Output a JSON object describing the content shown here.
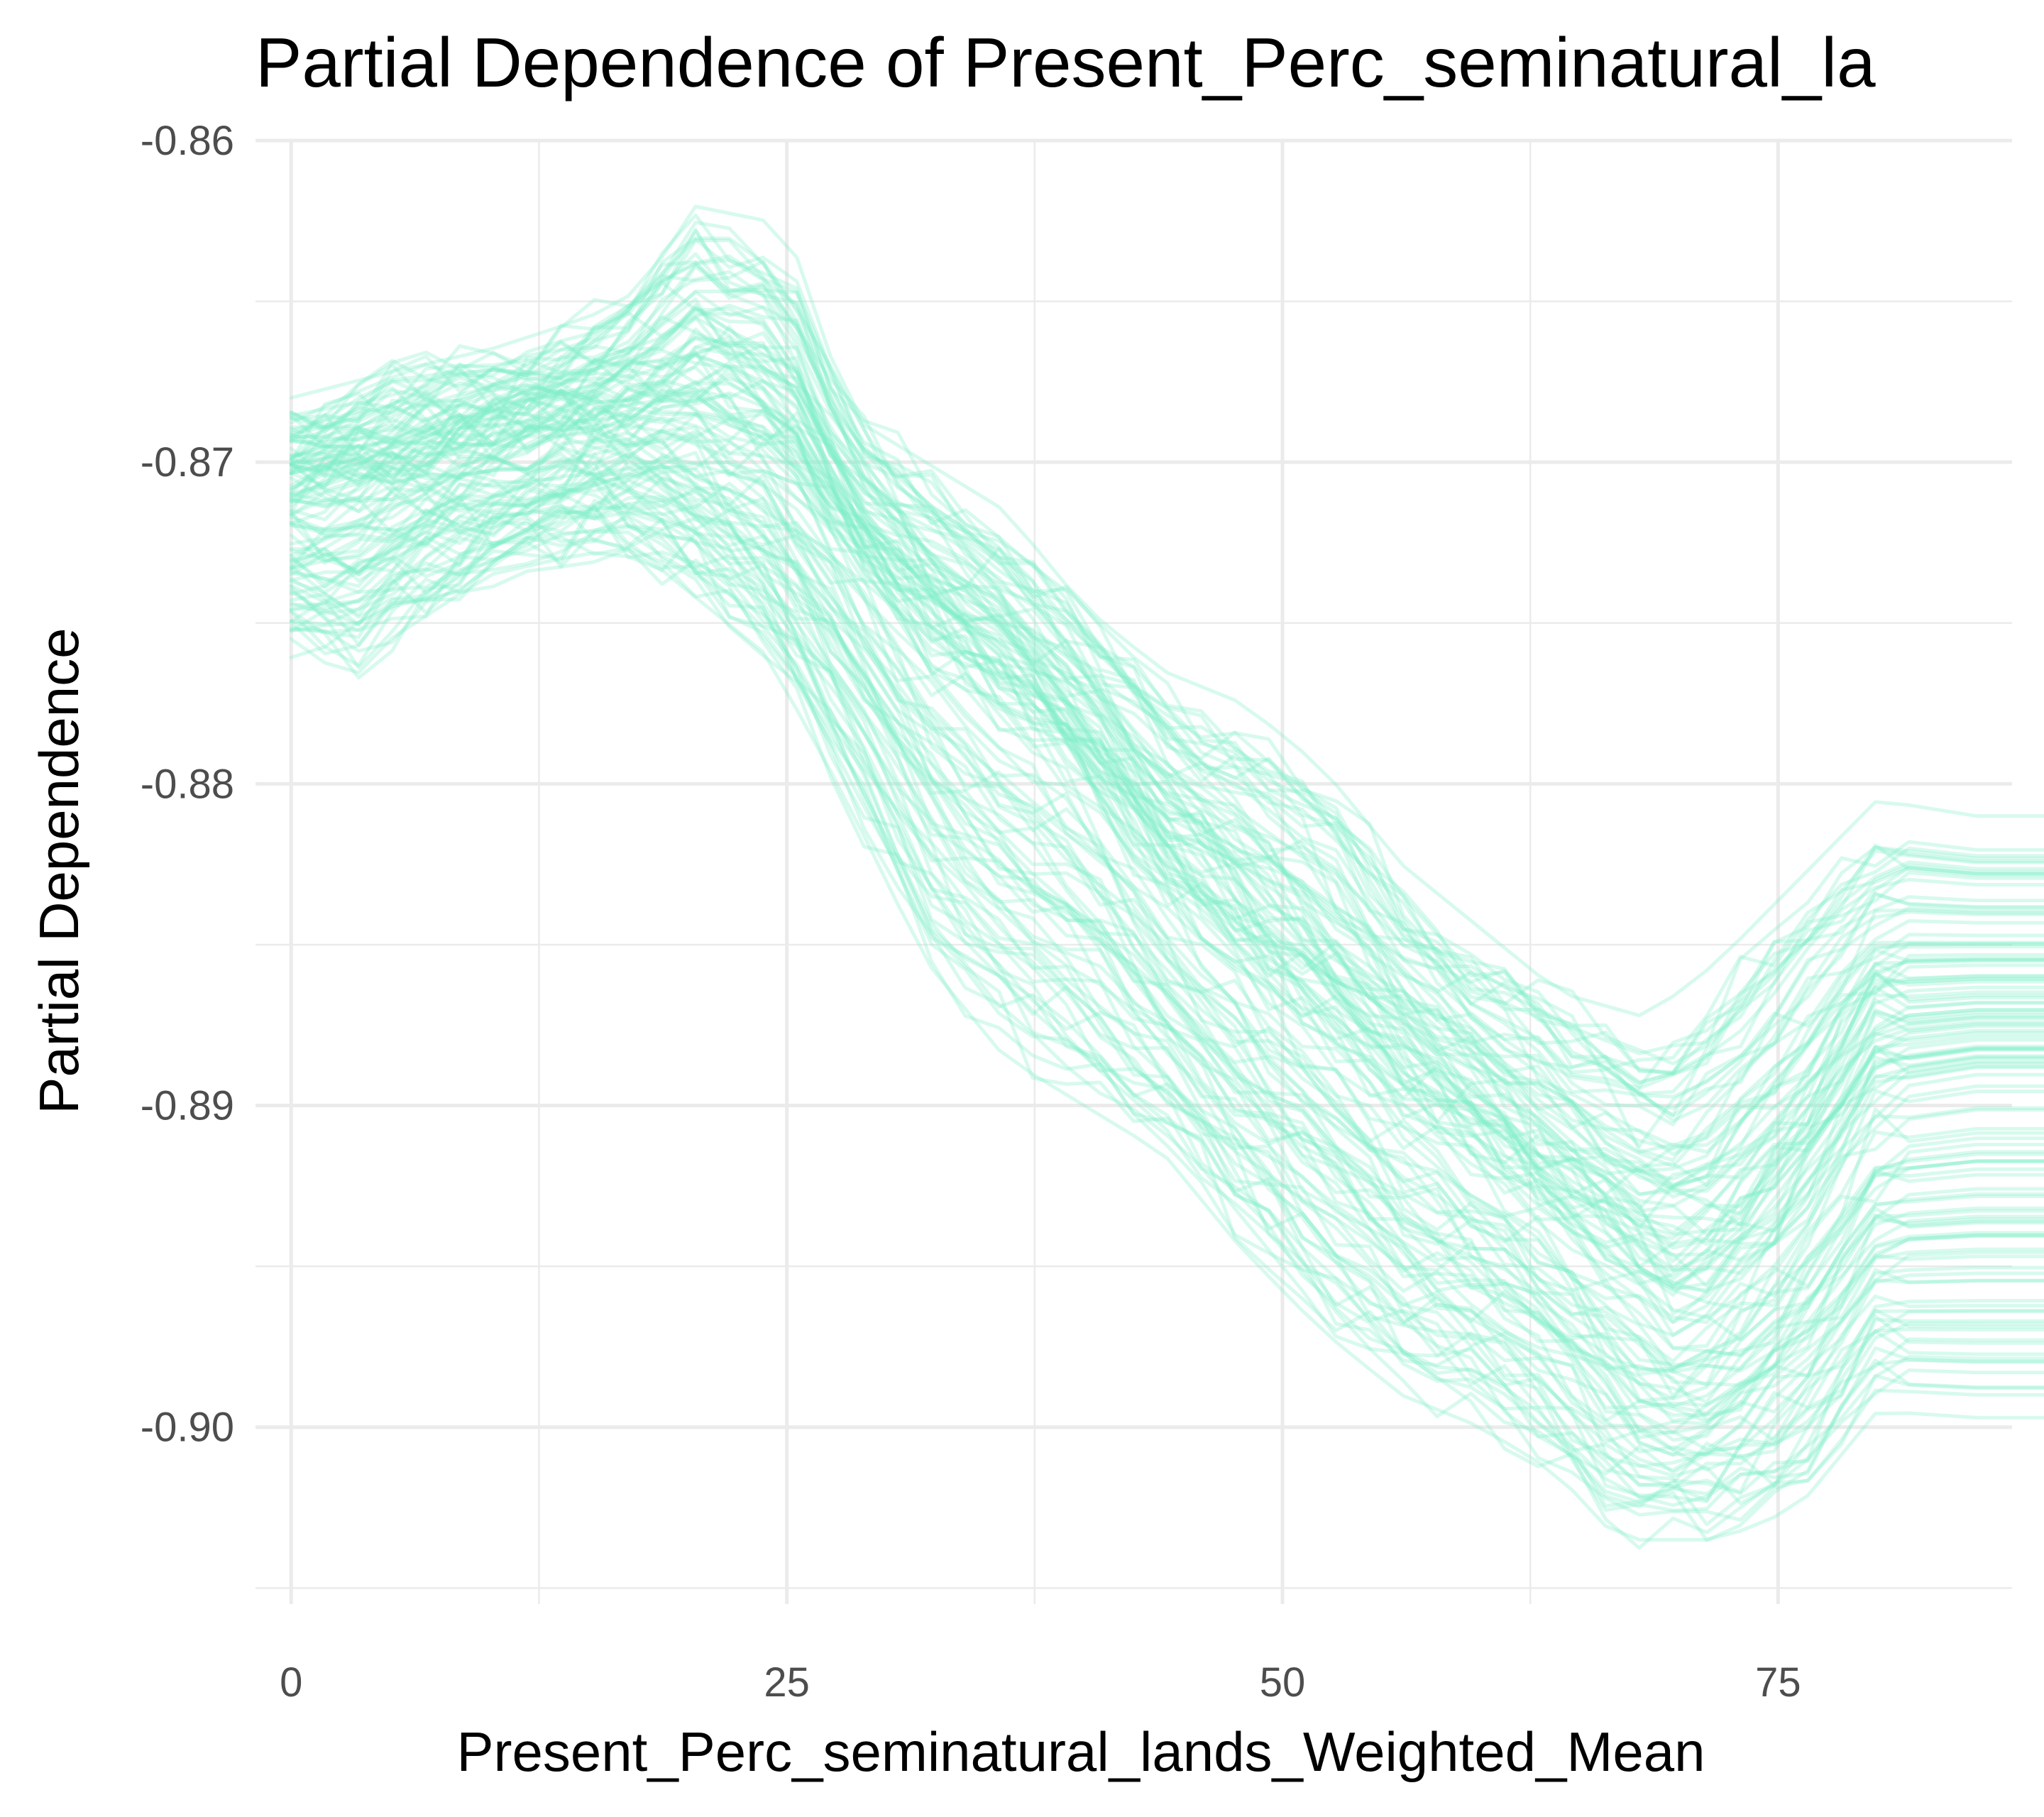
{
  "chart_data": {
    "type": "line",
    "title": "Partial Dependence of Present_Perc_seminatural_la",
    "xlabel": "Present_Perc_seminatural_lands_Weighted_Mean",
    "ylabel": "Partial Dependence",
    "xlim": [
      -1.8,
      86.8
    ],
    "ylim": [
      -0.9055,
      -0.86
    ],
    "x_ticks": [
      0,
      25,
      50,
      75
    ],
    "x_tick_labels": [
      "0",
      "25",
      "50",
      "75"
    ],
    "x_minor_ticks": [
      12.5,
      37.5,
      62.5,
      87.5
    ],
    "y_ticks": [
      -0.86,
      -0.87,
      -0.88,
      -0.89,
      -0.9
    ],
    "y_tick_labels": [
      "-0.86",
      "-0.87",
      "-0.88",
      "-0.89",
      "-0.90"
    ],
    "y_minor_ticks": [
      -0.865,
      -0.875,
      -0.885,
      -0.895,
      -0.905
    ],
    "grid": true,
    "legend": "none",
    "line_color": "#7ff0c6",
    "line_opacity": 0.3,
    "series_count": 120,
    "mean_curve": {
      "x": [
        0,
        5,
        10,
        15,
        20,
        25,
        28,
        32,
        36,
        40,
        44,
        48,
        52,
        56,
        60,
        64,
        68,
        70,
        72,
        76,
        80,
        85,
        93
      ],
      "y": [
        -0.8712,
        -0.8705,
        -0.8698,
        -0.869,
        -0.8687,
        -0.8702,
        -0.8725,
        -0.8755,
        -0.8775,
        -0.8795,
        -0.883,
        -0.8855,
        -0.8875,
        -0.8898,
        -0.8915,
        -0.8935,
        -0.8955,
        -0.8965,
        -0.896,
        -0.8935,
        -0.8895,
        -0.889,
        -0.889
      ]
    },
    "highest_curve": {
      "x": [
        0,
        5,
        10,
        15,
        18,
        20,
        24,
        26,
        28,
        32,
        36,
        40,
        44,
        48,
        52,
        56,
        60,
        64,
        68,
        70,
        72,
        76,
        80,
        85,
        93
      ],
      "y": [
        -0.868,
        -0.8672,
        -0.8665,
        -0.8655,
        -0.8645,
        -0.862,
        -0.8625,
        -0.864,
        -0.8685,
        -0.87,
        -0.8715,
        -0.8745,
        -0.8765,
        -0.8775,
        -0.8795,
        -0.8825,
        -0.8845,
        -0.8865,
        -0.8872,
        -0.8865,
        -0.8855,
        -0.883,
        -0.8805,
        -0.881,
        -0.881
      ]
    },
    "lowest_curve": {
      "x": [
        0,
        3,
        5,
        10,
        15,
        18,
        20,
        24,
        28,
        32,
        36,
        40,
        44,
        48,
        52,
        56,
        60,
        64,
        66,
        68,
        70,
        72,
        76,
        80,
        85,
        93
      ],
      "y": [
        -0.8755,
        -0.8768,
        -0.8755,
        -0.8735,
        -0.8728,
        -0.873,
        -0.874,
        -0.876,
        -0.8805,
        -0.8855,
        -0.8885,
        -0.89,
        -0.8915,
        -0.8945,
        -0.897,
        -0.899,
        -0.9,
        -0.9015,
        -0.903,
        -0.9035,
        -0.9035,
        -0.9035,
        -0.9025,
        -0.8995,
        -0.8997,
        -0.8997
      ]
    }
  }
}
